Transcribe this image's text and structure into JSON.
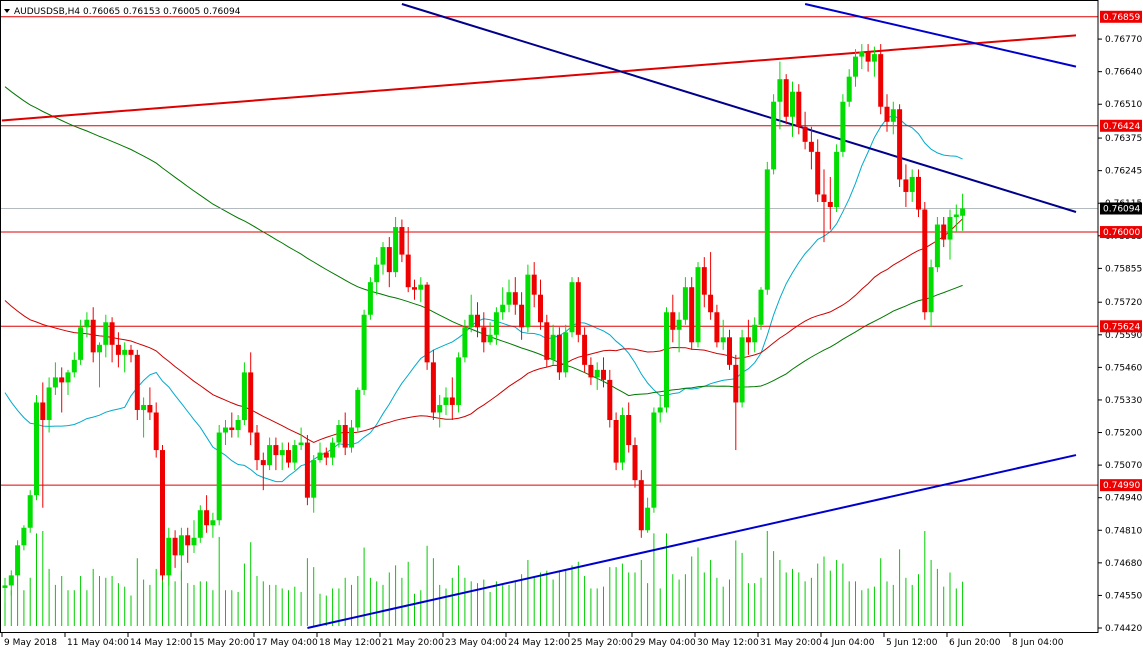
{
  "chart_data": {
    "type": "candlestick",
    "symbol_line": "AUDUSDSB,H4  0.76065 0.76153 0.76005 0.76094",
    "current_price": 0.76094,
    "current_price_label": "0.76094",
    "ylim": [
      0.7442,
      0.7691
    ],
    "y_ticks": [
      {
        "value": 0.7677,
        "label": "0.76770"
      },
      {
        "value": 0.7664,
        "label": "0.76640"
      },
      {
        "value": 0.7651,
        "label": "0.76510"
      },
      {
        "value": 0.76375,
        "label": "0.76375"
      },
      {
        "value": 0.76245,
        "label": "0.76245"
      },
      {
        "value": 0.76115,
        "label": "0.76115"
      },
      {
        "value": 0.75985,
        "label": "0.75985"
      },
      {
        "value": 0.75855,
        "label": "0.75855"
      },
      {
        "value": 0.7572,
        "label": "0.75720"
      },
      {
        "value": 0.7559,
        "label": "0.75590"
      },
      {
        "value": 0.7546,
        "label": "0.75460"
      },
      {
        "value": 0.7533,
        "label": "0.75330"
      },
      {
        "value": 0.752,
        "label": "0.75200"
      },
      {
        "value": 0.7507,
        "label": "0.75070"
      },
      {
        "value": 0.7494,
        "label": "0.74940"
      },
      {
        "value": 0.7481,
        "label": "0.74810"
      },
      {
        "value": 0.7468,
        "label": "0.74680"
      },
      {
        "value": 0.7455,
        "label": "0.74550"
      },
      {
        "value": 0.7442,
        "label": "0.74420"
      }
    ],
    "x_labels": [
      {
        "bar": 0,
        "label": "9 May 2018"
      },
      {
        "bar": 10,
        "label": "11 May 04:00"
      },
      {
        "bar": 20,
        "label": "14 May 12:00"
      },
      {
        "bar": 30,
        "label": "15 May 20:00"
      },
      {
        "bar": 40,
        "label": "17 May 04:00"
      },
      {
        "bar": 50,
        "label": "18 May 12:00"
      },
      {
        "bar": 60,
        "label": "21 May 20:00"
      },
      {
        "bar": 70,
        "label": "23 May 04:00"
      },
      {
        "bar": 80,
        "label": "24 May 12:00"
      },
      {
        "bar": 90,
        "label": "25 May 20:00"
      },
      {
        "bar": 100,
        "label": "29 May 04:00"
      },
      {
        "bar": 110,
        "label": "30 May 12:00"
      },
      {
        "bar": 120,
        "label": "31 May 20:00"
      },
      {
        "bar": 130,
        "label": "4 Jun 04:00"
      },
      {
        "bar": 140,
        "label": "5 Jun 12:00"
      },
      {
        "bar": 150,
        "label": "6 Jun 20:00"
      },
      {
        "bar": 160,
        "label": "8 Jun 04:00"
      }
    ],
    "horizontal_levels": [
      {
        "value": 0.76859,
        "label": "0.76859"
      },
      {
        "value": 0.76424,
        "label": "0.76424"
      },
      {
        "value": 0.76,
        "label": "0.76000"
      },
      {
        "value": 0.75624,
        "label": "0.75624"
      },
      {
        "value": 0.7499,
        "label": "0.74990"
      }
    ],
    "trendlines": [
      {
        "color": "#dd0000",
        "from": {
          "bar": -0.5,
          "price": 0.76445
        },
        "to": {
          "bar": 170,
          "price": 0.76785
        }
      },
      {
        "color": "#00008b",
        "from": {
          "bar": 63,
          "price": 0.7691
        },
        "to": {
          "bar": 170,
          "price": 0.7608
        }
      },
      {
        "color": "#0000cd",
        "from": {
          "bar": 127,
          "price": 0.7691
        },
        "to": {
          "bar": 170,
          "price": 0.7666
        }
      },
      {
        "color": "#0000cd",
        "from": {
          "bar": 48,
          "price": 0.7442
        },
        "to": {
          "bar": 170,
          "price": 0.7511
        }
      }
    ],
    "candles": [
      [
        0.7458,
        0.7462,
        0.7452,
        0.7459
      ],
      [
        0.7459,
        0.7465,
        0.7455,
        0.7463
      ],
      [
        0.7463,
        0.7477,
        0.7461,
        0.7475
      ],
      [
        0.7475,
        0.7483,
        0.7473,
        0.7482
      ],
      [
        0.7482,
        0.7497,
        0.748,
        0.7495
      ],
      [
        0.7495,
        0.7535,
        0.7493,
        0.7532
      ],
      [
        0.7532,
        0.754,
        0.749,
        0.7525
      ],
      [
        0.7525,
        0.7542,
        0.752,
        0.7538
      ],
      [
        0.7538,
        0.7548,
        0.7535,
        0.7542
      ],
      [
        0.7542,
        0.7546,
        0.7528,
        0.754
      ],
      [
        0.754,
        0.7545,
        0.7535,
        0.7544
      ],
      [
        0.7544,
        0.7552,
        0.7542,
        0.7549
      ],
      [
        0.7549,
        0.7565,
        0.7547,
        0.7562
      ],
      [
        0.7562,
        0.7568,
        0.7558,
        0.7565
      ],
      [
        0.7565,
        0.757,
        0.7548,
        0.7552
      ],
      [
        0.7552,
        0.7556,
        0.7538,
        0.7555
      ],
      [
        0.7555,
        0.7567,
        0.755,
        0.7564
      ],
      [
        0.7564,
        0.7566,
        0.7548,
        0.7555
      ],
      [
        0.7555,
        0.756,
        0.7546,
        0.7551
      ],
      [
        0.7551,
        0.7556,
        0.7544,
        0.7553
      ],
      [
        0.7553,
        0.7555,
        0.7548,
        0.7551
      ],
      [
        0.7551,
        0.7553,
        0.7525,
        0.7529
      ],
      [
        0.7529,
        0.7534,
        0.7518,
        0.7531
      ],
      [
        0.7531,
        0.7538,
        0.7525,
        0.7528
      ],
      [
        0.7528,
        0.7532,
        0.751,
        0.7513
      ],
      [
        0.7513,
        0.7515,
        0.7461,
        0.7463
      ],
      [
        0.7463,
        0.7482,
        0.7459,
        0.7478
      ],
      [
        0.7478,
        0.7481,
        0.7466,
        0.7471
      ],
      [
        0.7471,
        0.7482,
        0.7461,
        0.7479
      ],
      [
        0.7479,
        0.7482,
        0.7468,
        0.7475
      ],
      [
        0.7475,
        0.7485,
        0.7472,
        0.7478
      ],
      [
        0.7478,
        0.7491,
        0.7476,
        0.7489
      ],
      [
        0.7489,
        0.7495,
        0.748,
        0.7483
      ],
      [
        0.7483,
        0.7488,
        0.7478,
        0.7485
      ],
      [
        0.7485,
        0.7523,
        0.7483,
        0.752
      ],
      [
        0.752,
        0.7525,
        0.7515,
        0.7522
      ],
      [
        0.7522,
        0.7528,
        0.7518,
        0.7521
      ],
      [
        0.7521,
        0.7527,
        0.7518,
        0.7525
      ],
      [
        0.7525,
        0.7548,
        0.7523,
        0.7544
      ],
      [
        0.7544,
        0.7552,
        0.7515,
        0.752
      ],
      [
        0.752,
        0.7523,
        0.7505,
        0.7509
      ],
      [
        0.7509,
        0.7512,
        0.7497,
        0.7507
      ],
      [
        0.7507,
        0.7518,
        0.7505,
        0.7515
      ],
      [
        0.7515,
        0.7518,
        0.7505,
        0.7511
      ],
      [
        0.7511,
        0.7516,
        0.7505,
        0.7513
      ],
      [
        0.7513,
        0.7516,
        0.7506,
        0.7508
      ],
      [
        0.7508,
        0.7517,
        0.7505,
        0.7515
      ],
      [
        0.7515,
        0.7522,
        0.7513,
        0.7516
      ],
      [
        0.7516,
        0.7519,
        0.7491,
        0.7494
      ],
      [
        0.7494,
        0.7511,
        0.7488,
        0.7509
      ],
      [
        0.7509,
        0.7516,
        0.7508,
        0.7512
      ],
      [
        0.7512,
        0.7514,
        0.7507,
        0.751
      ],
      [
        0.751,
        0.7518,
        0.7507,
        0.7516
      ],
      [
        0.7516,
        0.7525,
        0.7514,
        0.7523
      ],
      [
        0.7523,
        0.7528,
        0.7511,
        0.7514
      ],
      [
        0.7514,
        0.7525,
        0.7512,
        0.7522
      ],
      [
        0.7522,
        0.7538,
        0.752,
        0.7537
      ],
      [
        0.7537,
        0.7569,
        0.7535,
        0.7567
      ],
      [
        0.7567,
        0.7582,
        0.7565,
        0.758
      ],
      [
        0.758,
        0.759,
        0.7575,
        0.7587
      ],
      [
        0.7587,
        0.7596,
        0.7583,
        0.7594
      ],
      [
        0.7594,
        0.7598,
        0.7578,
        0.7584
      ],
      [
        0.7584,
        0.7606,
        0.7582,
        0.7602
      ],
      [
        0.7602,
        0.7605,
        0.7588,
        0.7591
      ],
      [
        0.7591,
        0.7602,
        0.7576,
        0.7578
      ],
      [
        0.7578,
        0.7581,
        0.7573,
        0.7577
      ],
      [
        0.7577,
        0.7582,
        0.7572,
        0.7579
      ],
      [
        0.7579,
        0.758,
        0.7545,
        0.7548
      ],
      [
        0.7548,
        0.7553,
        0.7525,
        0.7528
      ],
      [
        0.7528,
        0.7535,
        0.7522,
        0.7531
      ],
      [
        0.7531,
        0.7538,
        0.7527,
        0.7534
      ],
      [
        0.7534,
        0.7542,
        0.7525,
        0.7531
      ],
      [
        0.7531,
        0.7552,
        0.7528,
        0.755
      ],
      [
        0.755,
        0.7565,
        0.7548,
        0.7562
      ],
      [
        0.7562,
        0.7575,
        0.756,
        0.7567
      ],
      [
        0.7567,
        0.7572,
        0.7558,
        0.7562
      ],
      [
        0.7562,
        0.7568,
        0.7552,
        0.7556
      ],
      [
        0.7556,
        0.7564,
        0.7555,
        0.7559
      ],
      [
        0.7559,
        0.757,
        0.7555,
        0.7568
      ],
      [
        0.7568,
        0.7578,
        0.7565,
        0.7571
      ],
      [
        0.7571,
        0.7581,
        0.7568,
        0.7576
      ],
      [
        0.7576,
        0.7582,
        0.7567,
        0.7571
      ],
      [
        0.7571,
        0.7576,
        0.7557,
        0.7562
      ],
      [
        0.7562,
        0.7587,
        0.756,
        0.7583
      ],
      [
        0.7583,
        0.7588,
        0.757,
        0.7575
      ],
      [
        0.7575,
        0.7581,
        0.7561,
        0.7564
      ],
      [
        0.7564,
        0.7567,
        0.7546,
        0.7549
      ],
      [
        0.7549,
        0.7563,
        0.7547,
        0.7559
      ],
      [
        0.7559,
        0.7562,
        0.7541,
        0.7544
      ],
      [
        0.7544,
        0.7563,
        0.7542,
        0.756
      ],
      [
        0.756,
        0.7582,
        0.7558,
        0.758
      ],
      [
        0.758,
        0.7582,
        0.7556,
        0.7559
      ],
      [
        0.7559,
        0.7562,
        0.7544,
        0.7547
      ],
      [
        0.7547,
        0.755,
        0.7539,
        0.7542
      ],
      [
        0.7542,
        0.7548,
        0.7537,
        0.7545
      ],
      [
        0.7545,
        0.755,
        0.7538,
        0.7541
      ],
      [
        0.7541,
        0.7545,
        0.7522,
        0.7525
      ],
      [
        0.7525,
        0.7528,
        0.7505,
        0.7508
      ],
      [
        0.7508,
        0.753,
        0.7505,
        0.7527
      ],
      [
        0.7527,
        0.7532,
        0.7512,
        0.7515
      ],
      [
        0.7515,
        0.7518,
        0.7498,
        0.7501
      ],
      [
        0.7501,
        0.7505,
        0.7478,
        0.7481
      ],
      [
        0.7481,
        0.7494,
        0.748,
        0.749
      ],
      [
        0.749,
        0.753,
        0.7488,
        0.7528
      ],
      [
        0.7528,
        0.7535,
        0.7524,
        0.753
      ],
      [
        0.753,
        0.757,
        0.7528,
        0.7568
      ],
      [
        0.7568,
        0.7575,
        0.7556,
        0.7561
      ],
      [
        0.7561,
        0.7568,
        0.7552,
        0.7565
      ],
      [
        0.7565,
        0.7582,
        0.7563,
        0.7578
      ],
      [
        0.7578,
        0.7582,
        0.7553,
        0.7556
      ],
      [
        0.7556,
        0.7588,
        0.7554,
        0.7586
      ],
      [
        0.7586,
        0.759,
        0.757,
        0.7575
      ],
      [
        0.7575,
        0.7592,
        0.7565,
        0.7568
      ],
      [
        0.7568,
        0.7571,
        0.7554,
        0.7556
      ],
      [
        0.7556,
        0.7565,
        0.7553,
        0.7558
      ],
      [
        0.7558,
        0.7561,
        0.7545,
        0.7547
      ],
      [
        0.7547,
        0.7551,
        0.7513,
        0.7532
      ],
      [
        0.7532,
        0.7561,
        0.753,
        0.7558
      ],
      [
        0.7558,
        0.7565,
        0.7551,
        0.7556
      ],
      [
        0.7556,
        0.7566,
        0.7552,
        0.7563
      ],
      [
        0.7563,
        0.7578,
        0.7561,
        0.7577
      ],
      [
        0.7577,
        0.7628,
        0.7575,
        0.7625
      ],
      [
        0.7625,
        0.7655,
        0.7623,
        0.7652
      ],
      [
        0.7652,
        0.7668,
        0.7641,
        0.7661
      ],
      [
        0.7661,
        0.7663,
        0.7643,
        0.7646
      ],
      [
        0.7646,
        0.766,
        0.7638,
        0.7656
      ],
      [
        0.7656,
        0.7659,
        0.7639,
        0.7642
      ],
      [
        0.7642,
        0.7648,
        0.7633,
        0.7636
      ],
      [
        0.7636,
        0.7642,
        0.7625,
        0.7632
      ],
      [
        0.7632,
        0.7637,
        0.7612,
        0.7615
      ],
      [
        0.7615,
        0.7625,
        0.7596,
        0.7612
      ],
      [
        0.7612,
        0.7622,
        0.7601,
        0.761
      ],
      [
        0.761,
        0.7635,
        0.7608,
        0.7632
      ],
      [
        0.7632,
        0.7655,
        0.763,
        0.7652
      ],
      [
        0.7652,
        0.7665,
        0.765,
        0.7662
      ],
      [
        0.7662,
        0.7673,
        0.7658,
        0.767
      ],
      [
        0.767,
        0.7675,
        0.7665,
        0.7672
      ],
      [
        0.7672,
        0.7675,
        0.7664,
        0.7668
      ],
      [
        0.7668,
        0.7674,
        0.7662,
        0.7671
      ],
      [
        0.7671,
        0.7675,
        0.7647,
        0.765
      ],
      [
        0.765,
        0.7655,
        0.764,
        0.7644
      ],
      [
        0.7644,
        0.7652,
        0.7639,
        0.7649
      ],
      [
        0.7649,
        0.7651,
        0.7618,
        0.7621
      ],
      [
        0.7621,
        0.7627,
        0.761,
        0.7616
      ],
      [
        0.7616,
        0.7625,
        0.7612,
        0.7622
      ],
      [
        0.7622,
        0.7625,
        0.7606,
        0.7609
      ],
      [
        0.7609,
        0.7612,
        0.7565,
        0.7568
      ],
      [
        0.7568,
        0.7589,
        0.7562,
        0.7586
      ],
      [
        0.7586,
        0.7606,
        0.7584,
        0.7603
      ],
      [
        0.7603,
        0.7606,
        0.7594,
        0.7597
      ],
      [
        0.7597,
        0.7609,
        0.7589,
        0.7606
      ],
      [
        0.7606,
        0.7611,
        0.76,
        0.7607
      ],
      [
        0.76065,
        0.76153,
        0.76005,
        0.76094
      ]
    ]
  }
}
